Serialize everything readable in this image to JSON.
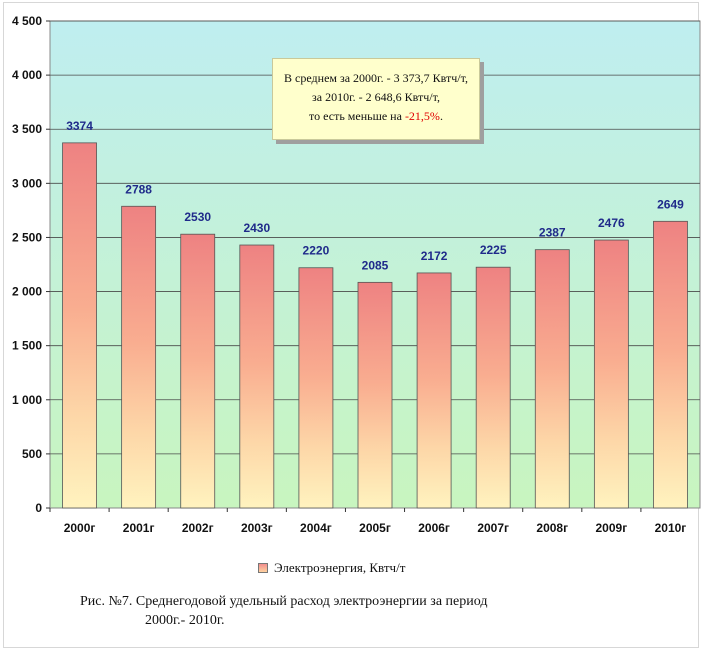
{
  "chart_data": {
    "type": "bar",
    "categories": [
      "2000г",
      "2001г",
      "2002г",
      "2003г",
      "2004г",
      "2005г",
      "2006г",
      "2007г",
      "2008г",
      "2009г",
      "2010г"
    ],
    "values": [
      3374,
      2788,
      2530,
      2430,
      2220,
      2085,
      2172,
      2225,
      2387,
      2476,
      2649
    ],
    "data_labels": [
      "3374",
      "2788",
      "2530",
      "2430",
      "2220",
      "2085",
      "2172",
      "2225",
      "2387",
      "2476",
      "2649"
    ],
    "ylim": [
      0,
      4500
    ],
    "yticks": [
      0,
      500,
      1000,
      1500,
      2000,
      2500,
      3000,
      3500,
      4000,
      4500
    ],
    "ytick_labels": [
      "0",
      "500",
      "1 000",
      "1 500",
      "2 000",
      "2 500",
      "3 000",
      "3 500",
      "4 000",
      "4 500"
    ],
    "grid": true,
    "legend": {
      "position": "bottom",
      "entries": [
        "Электроэнергия, Квтч/т"
      ]
    },
    "series_name": "Электроэнергия, Квтч/т",
    "colors": {
      "bar_top": "#ee8484",
      "bar_bottom": "#fff1b8",
      "bg_top": "#bfeef0",
      "bg_bottom": "#c6f4c0",
      "label": "#1f2a8a"
    }
  },
  "annotation": {
    "line1": "В среднем за 2000г. - 3 373,7 Квтч/т,",
    "line2": "за 2010г. - 2 648,6 Квтч/т,",
    "line3_prefix": "то есть меньше на ",
    "line3_value": "-21,5%",
    "line3_suffix": "."
  },
  "caption": {
    "line1": "Рис. №7. Среднегодовой удельный расход электроэнергии за период",
    "line2": "2000г.- 2010г."
  }
}
